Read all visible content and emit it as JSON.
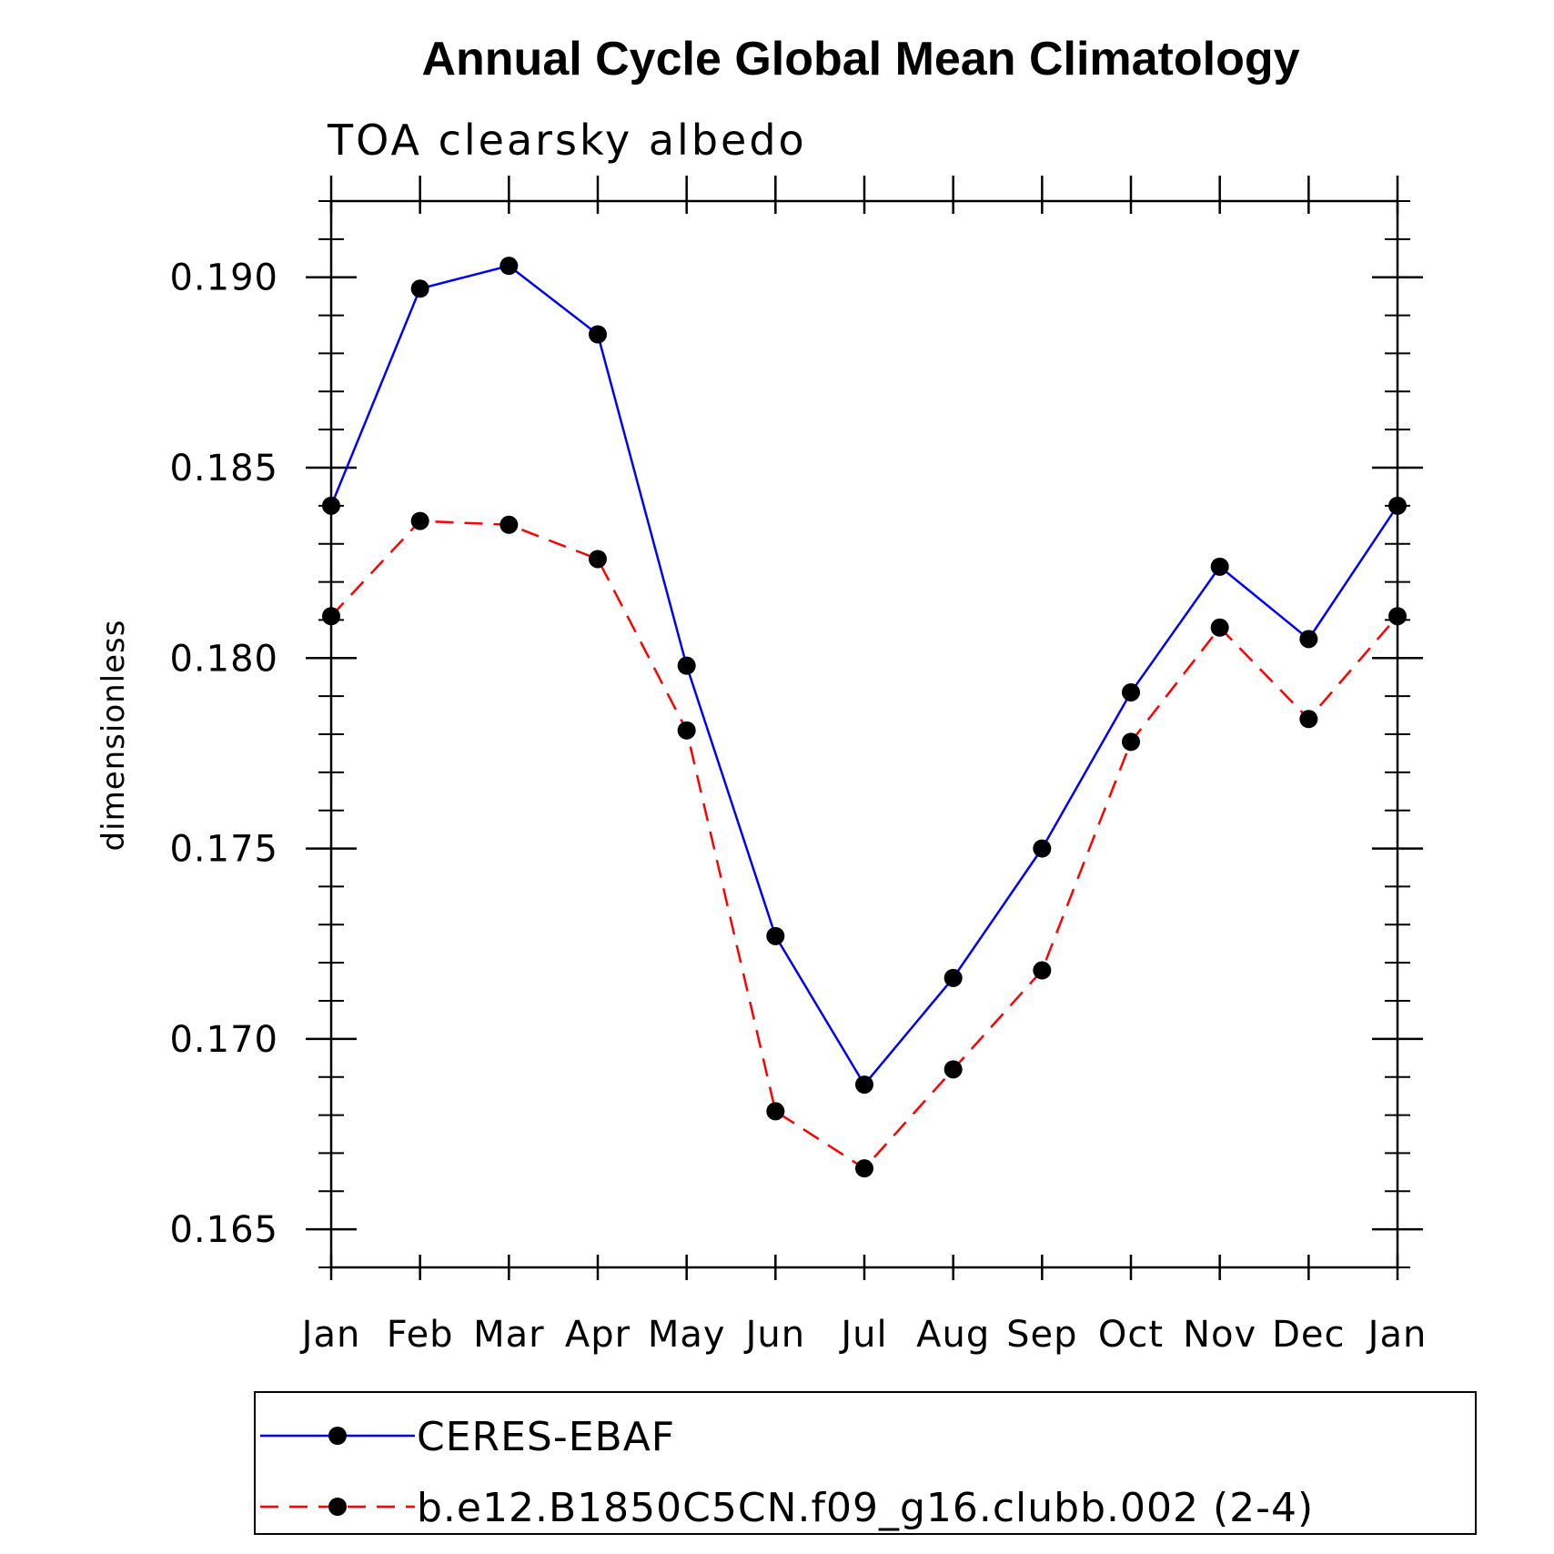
{
  "chart_data": {
    "type": "line",
    "title": "Annual Cycle Global Mean Climatology",
    "subtitle": "TOA clearsky albedo",
    "ylabel": "dimensionless",
    "xlabel": "",
    "categories": [
      "Jan",
      "Feb",
      "Mar",
      "Apr",
      "May",
      "Jun",
      "Jul",
      "Aug",
      "Sep",
      "Oct",
      "Nov",
      "Dec",
      "Jan"
    ],
    "ylim": [
      0.164,
      0.192
    ],
    "yticks": [
      "0.165",
      "0.170",
      "0.175",
      "0.180",
      "0.185",
      "0.190"
    ],
    "grid": false,
    "legend_position": "bottom",
    "series": [
      {
        "name": "CERES-EBAF",
        "color": "#0000ff",
        "dash": "solid",
        "marker": "filled-circle",
        "values": [
          0.184,
          0.1897,
          0.1903,
          0.1885,
          0.1798,
          0.1727,
          0.1688,
          0.1716,
          0.175,
          0.1791,
          0.1824,
          0.1805,
          0.184
        ]
      },
      {
        "name": "b.e12.B1850C5CN.f09_g16.clubb.002 (2-4)",
        "color": "#ff0000",
        "dash": "dashed",
        "marker": "filled-circle",
        "values": [
          0.1811,
          0.1836,
          0.1835,
          0.1826,
          0.1781,
          0.1681,
          0.1666,
          0.1692,
          0.1718,
          0.1778,
          0.1808,
          0.1784,
          0.1811
        ]
      }
    ]
  }
}
